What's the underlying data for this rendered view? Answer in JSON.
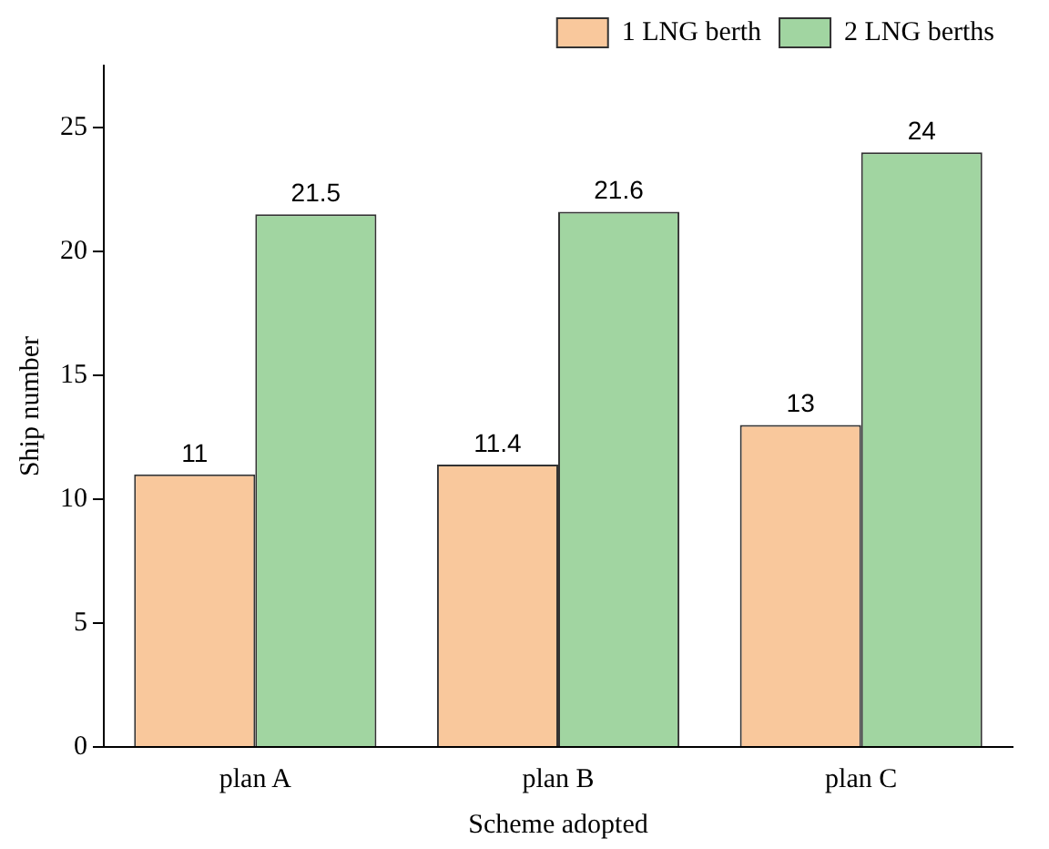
{
  "chart_data": {
    "type": "bar",
    "xlabel": "Scheme adopted",
    "ylabel": "Ship number",
    "categories": [
      "plan A",
      "plan B",
      "plan C"
    ],
    "series": [
      {
        "name": "1 LNG berth",
        "color": "#f9c89c",
        "values": [
          11,
          11.4,
          13
        ]
      },
      {
        "name": "2 LNG berths",
        "color": "#a1d5a1",
        "values": [
          21.5,
          21.6,
          24
        ]
      }
    ],
    "ylim": [
      0,
      27.5
    ],
    "yticks": [
      0,
      5,
      10,
      15,
      20,
      25
    ],
    "grid": false,
    "legend": "top right",
    "data_labels": true
  }
}
